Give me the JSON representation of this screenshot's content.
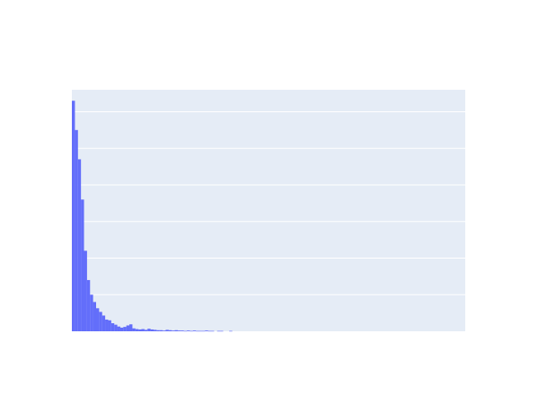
{
  "chart_data": {
    "type": "bar",
    "title": "",
    "xlabel": "",
    "ylabel": "",
    "grid": true,
    "legend": "none",
    "x_bins": 130,
    "ylim": [
      0,
      6.6
    ],
    "values": [
      6.3,
      5.5,
      4.7,
      3.6,
      2.2,
      1.4,
      1.0,
      0.8,
      0.63,
      0.53,
      0.43,
      0.32,
      0.3,
      0.22,
      0.18,
      0.13,
      0.1,
      0.12,
      0.16,
      0.19,
      0.08,
      0.06,
      0.05,
      0.06,
      0.04,
      0.07,
      0.05,
      0.04,
      0.03,
      0.03,
      0.02,
      0.04,
      0.03,
      0.02,
      0.03,
      0.02,
      0.02,
      0.01,
      0.02,
      0.01,
      0.02,
      0.01,
      0.01,
      0.01,
      0.02,
      0.01,
      0.01,
      0.0,
      0.01,
      0.01,
      0.0,
      0.0,
      0.01,
      0.0,
      0.0,
      0.0,
      0.0,
      0.0,
      0.0,
      0.0,
      0.0,
      0.0,
      0.0,
      0.0,
      0.0,
      0.0,
      0.0,
      0.0,
      0.0,
      0.0,
      0.0,
      0.0,
      0.0,
      0.0,
      0.0,
      0.0,
      0.0,
      0.0,
      0.0,
      0.0,
      0.0,
      0.0,
      0.0,
      0.0,
      0.0,
      0.0,
      0.0,
      0.0,
      0.0,
      0.0,
      0.0,
      0.0,
      0.0,
      0.0,
      0.0,
      0.0,
      0.0,
      0.0,
      0.0,
      0.0,
      0.0,
      0.0,
      0.0,
      0.0,
      0.0,
      0.0,
      0.0,
      0.0,
      0.0,
      0.0,
      0.0,
      0.0,
      0.0,
      0.0,
      0.0,
      0.0,
      0.0,
      0.0,
      0.0,
      0.0,
      0.0,
      0.0,
      0.0,
      0.0,
      0.0,
      0.0,
      0.0,
      0.0,
      0.0,
      0.0
    ],
    "colors": {
      "plot_background": "#e5ecf6",
      "gridline": "#ffffff",
      "bar": "#636efa"
    }
  }
}
